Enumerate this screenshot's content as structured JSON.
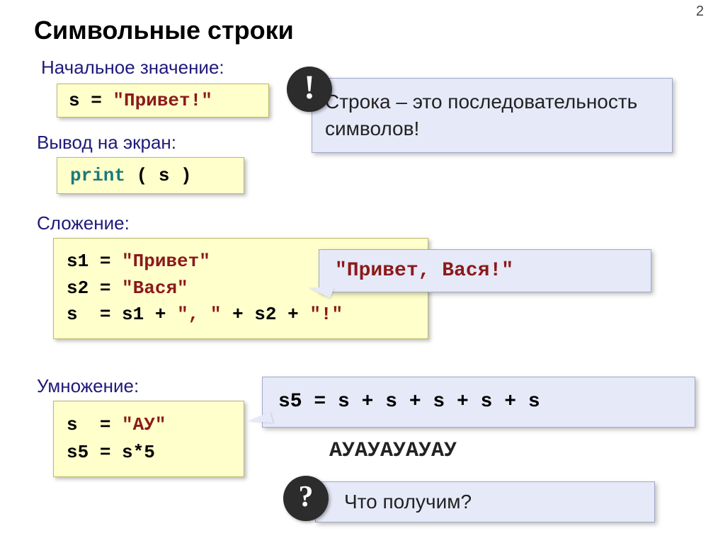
{
  "page_number": "2",
  "title": "Символьные строки",
  "subtitles": {
    "initial": "Начальное значение:",
    "output": "Вывод на экран:",
    "concat": "Сложение:",
    "mult": "Умножение:"
  },
  "code": {
    "box1_var": "s",
    "box1_eq": " = ",
    "box1_str": "\"Привет!\"",
    "box2_func": "print",
    "box2_paren_open": " ( ",
    "box2_var": "s",
    "box2_paren_close": " )",
    "box3_l1_var": "s1",
    "box3_l1_eq": " = ",
    "box3_l1_str": "\"Привет\"",
    "box3_l2_var": "s2",
    "box3_l2_eq": " = ",
    "box3_l2_str": "\"Вася\"",
    "box3_l3_var": "s ",
    "box3_l3_eq": " = ",
    "box3_l3_a": "s1",
    "box3_l3_p1": " + ",
    "box3_l3_str1": "\", \"",
    "box3_l3_p2": " + ",
    "box3_l3_b": "s2",
    "box3_l3_p3": " + ",
    "box3_l3_str2": "\"!\"",
    "box4_l1_var": "s ",
    "box4_l1_eq": " = ",
    "box4_l1_str": "\"АУ\"",
    "box4_l2_var": "s5 ",
    "box4_l2_eq": "= ",
    "box4_l2_expr": "s*5"
  },
  "callouts": {
    "bang": "!",
    "info": "Строка – это последовательность символов!",
    "speech1": "\"Привет, Вася!\"",
    "speech2": "s5 = s + s + s + s + s",
    "output": "АУАУАУАУАУ",
    "qmark": "?",
    "question": "Что получим?"
  },
  "colors": {
    "heading": "#1f1a7a",
    "string": "#8b1a1a",
    "func": "#1a7a7a",
    "codebox_bg": "#ffffcc",
    "callout_bg": "#e6e9f7"
  }
}
